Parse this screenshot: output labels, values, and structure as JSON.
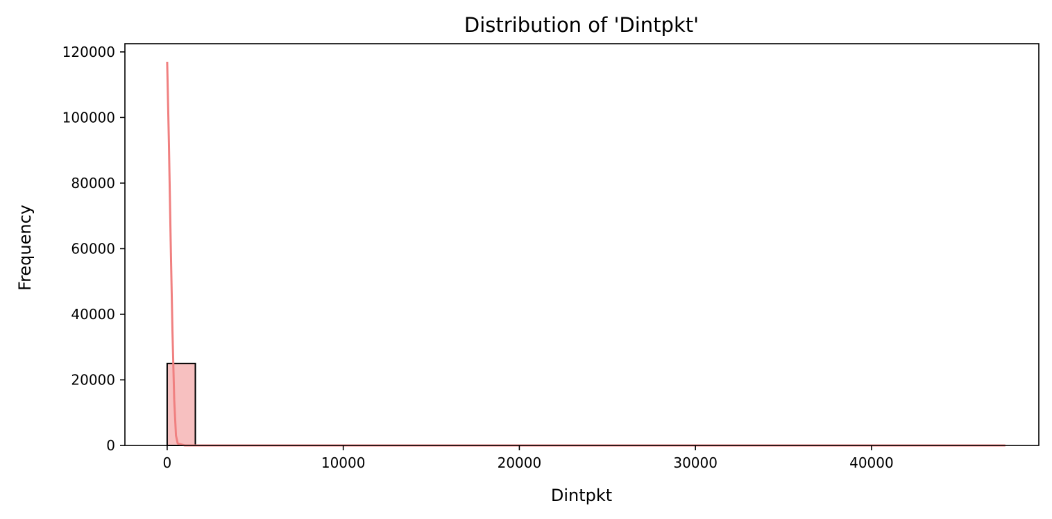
{
  "chart_data": {
    "type": "bar",
    "title": "Distribution of 'Dintpkt'",
    "xlabel": "Dintpkt",
    "ylabel": "Frequency",
    "xlim": [
      -2400,
      49500
    ],
    "ylim": [
      0,
      122500
    ],
    "xticks": [
      0,
      10000,
      20000,
      30000,
      40000
    ],
    "yticks": [
      0,
      20000,
      40000,
      60000,
      80000,
      100000,
      120000
    ],
    "bin_width": 1600,
    "bins": [
      {
        "x0": 0,
        "x1": 1600,
        "count": 25000
      },
      {
        "x0": 1600,
        "x1": 47600,
        "count": 0
      }
    ],
    "kde": {
      "x": [
        0,
        100,
        200,
        300,
        400,
        500,
        600,
        1000,
        2000,
        5000,
        10000,
        20000,
        30000,
        40000,
        47600
      ],
      "y": [
        117000,
        92000,
        62000,
        35000,
        14000,
        3000,
        600,
        0,
        0,
        0,
        0,
        0,
        0,
        0,
        0
      ]
    },
    "colors": {
      "bar_fill": "#f7c0c0",
      "bar_edge": "#000000",
      "kde_line": "#f08080"
    },
    "grid": false,
    "legend": "none"
  }
}
